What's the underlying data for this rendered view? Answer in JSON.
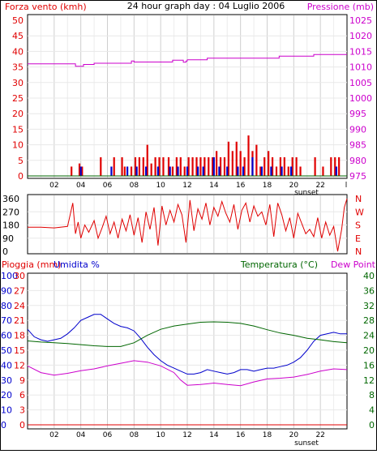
{
  "title": "24 hour graph day : 04 Luglio 2006",
  "colors": {
    "red": "#e00000",
    "magenta": "#cc00cc",
    "blue": "#0000cc",
    "green": "#006600",
    "grid_v": "#cfcfcf",
    "grid_h": "#e8e8e8"
  },
  "chart_data": [
    {
      "type": "bar",
      "ylabel_left": "Forza vento (kmh)",
      "ylabel_right": "Pressione (mb)",
      "yticks_left": [
        "50",
        "45",
        "40",
        "35",
        "30",
        "25",
        "20",
        "15",
        "10",
        "5",
        "0"
      ],
      "yticks_right": [
        "1025",
        "1020",
        "1015",
        "1010",
        "1005",
        "1000",
        "995",
        "990",
        "985",
        "980",
        "975"
      ],
      "ylim_left": [
        0,
        50
      ],
      "ylim_right": [
        975,
        1025
      ],
      "xticks": [
        "02",
        "04",
        "06",
        "08",
        "10",
        "12",
        "14",
        "16",
        "18",
        "20",
        "22"
      ],
      "xticks_extra": [
        "sunset",
        "l"
      ],
      "xlim": [
        0,
        24
      ],
      "grid": true,
      "series": [
        {
          "name": "Pressione (mb)",
          "type": "line",
          "color": "#cc00cc",
          "x": [
            0,
            3.6,
            3.6,
            4.2,
            4.2,
            5.0,
            5.0,
            7.8,
            7.8,
            8.0,
            8.0,
            10.9,
            10.9,
            11.7,
            11.7,
            11.9,
            11.9,
            12.0,
            12.0,
            13.5,
            13.5,
            18.9,
            18.9,
            21.5,
            21.5,
            24.0
          ],
          "y": [
            1011.0,
            1011.0,
            1010.2,
            1010.2,
            1010.8,
            1010.8,
            1011.2,
            1011.2,
            1011.9,
            1011.9,
            1011.6,
            1011.6,
            1012.2,
            1012.2,
            1011.5,
            1011.5,
            1011.9,
            1011.9,
            1012.3,
            1012.3,
            1012.8,
            1012.8,
            1013.5,
            1013.5,
            1014.0,
            1014.0
          ]
        },
        {
          "name": "Forza vento (kmh)",
          "type": "bar",
          "color": "#e00000",
          "x": [
            3.3,
            3.9,
            4.1,
            5.5,
            6.5,
            7.1,
            7.3,
            7.8,
            8.1,
            8.4,
            8.7,
            9.0,
            9.3,
            9.6,
            9.9,
            10.2,
            10.6,
            10.9,
            11.2,
            11.5,
            11.8,
            12.1,
            12.4,
            12.7,
            13.0,
            13.3,
            13.6,
            13.9,
            14.2,
            14.5,
            14.8,
            15.1,
            15.4,
            15.7,
            16.0,
            16.3,
            16.6,
            16.9,
            17.2,
            17.5,
            17.8,
            18.1,
            18.4,
            18.7,
            19.0,
            19.3,
            19.6,
            19.9,
            20.2,
            20.5,
            21.6,
            22.2,
            22.8,
            23.1,
            23.4
          ],
          "y": [
            3,
            4,
            3,
            6,
            6,
            6,
            3,
            3,
            6,
            6,
            6,
            10,
            4,
            6,
            6,
            6,
            6,
            3,
            6,
            6,
            3,
            6,
            6,
            6,
            6,
            6,
            6,
            6,
            8,
            6,
            6,
            11,
            8,
            11,
            8,
            6,
            13,
            8,
            10,
            3,
            6,
            8,
            6,
            3,
            6,
            6,
            3,
            6,
            6,
            3,
            6,
            3,
            6,
            6,
            6
          ]
        },
        {
          "name": "Raffica",
          "type": "bar",
          "color": "#0000cc",
          "x": [
            4.0,
            6.3,
            7.5,
            8.2,
            8.9,
            9.8,
            10.7,
            11.3,
            12.0,
            12.8,
            13.2,
            14.0,
            14.4,
            15.0,
            15.8,
            16.2,
            16.9,
            17.6,
            18.3,
            19.1,
            19.8,
            23.2
          ],
          "y": [
            3,
            3,
            3,
            3,
            3,
            3,
            3,
            3,
            3,
            3,
            3,
            6,
            3,
            3,
            3,
            3,
            6,
            3,
            3,
            3,
            3,
            3
          ]
        }
      ]
    },
    {
      "type": "line",
      "yticks_left": [
        "360",
        "270",
        "180",
        "90",
        "0"
      ],
      "yticks_right": [
        "N",
        "W",
        "S",
        "E",
        "N"
      ],
      "ylim": [
        0,
        360
      ],
      "xlim": [
        0,
        24
      ],
      "series": [
        {
          "name": "Direzione vento",
          "color": "#e00000",
          "x": [
            0,
            1.0,
            2.0,
            3.0,
            3.4,
            3.6,
            3.8,
            4.0,
            4.3,
            4.6,
            5.0,
            5.3,
            5.6,
            5.9,
            6.2,
            6.5,
            6.8,
            7.1,
            7.4,
            7.7,
            8.0,
            8.3,
            8.6,
            8.9,
            9.2,
            9.5,
            9.8,
            10.1,
            10.4,
            10.7,
            11.0,
            11.3,
            11.6,
            11.9,
            12.2,
            12.5,
            12.8,
            13.1,
            13.4,
            13.7,
            14.0,
            14.3,
            14.6,
            14.9,
            15.2,
            15.5,
            15.8,
            16.1,
            16.4,
            16.7,
            17.0,
            17.3,
            17.6,
            17.9,
            18.2,
            18.5,
            18.8,
            19.1,
            19.4,
            19.7,
            20.0,
            20.3,
            20.6,
            20.9,
            21.2,
            21.5,
            21.8,
            22.1,
            22.4,
            22.7,
            23.0,
            23.3,
            23.6,
            23.8,
            24.0
          ],
          "y": [
            165,
            165,
            160,
            170,
            330,
            120,
            200,
            90,
            180,
            130,
            210,
            90,
            160,
            240,
            120,
            200,
            90,
            220,
            140,
            250,
            110,
            230,
            60,
            270,
            150,
            300,
            40,
            310,
            180,
            280,
            200,
            320,
            250,
            60,
            350,
            140,
            290,
            220,
            330,
            180,
            300,
            240,
            340,
            260,
            200,
            320,
            150,
            280,
            330,
            200,
            310,
            240,
            270,
            180,
            320,
            100,
            330,
            250,
            140,
            230,
            90,
            260,
            190,
            120,
            150,
            100,
            230,
            90,
            200,
            110,
            170,
            0,
            150,
            300,
            360
          ]
        }
      ]
    },
    {
      "type": "line",
      "ylabel_rain": "Pioggia (mm)",
      "ylabel_humidity": "Umidita %",
      "ylabel_temp": "Temperatura (°C)",
      "ylabel_dew": "Dew Point",
      "yticks_humidity": [
        "100",
        "90",
        "80",
        "70",
        "60",
        "50",
        "40",
        "30",
        "20",
        "10",
        "0"
      ],
      "yticks_rain": [
        "30",
        "27",
        "24",
        "21",
        "18",
        "15",
        "12",
        "9",
        "6",
        "3",
        "0"
      ],
      "yticks_temp": [
        "40",
        "36",
        "32",
        "28",
        "24",
        "20",
        "16",
        "12",
        "8",
        "4",
        "0"
      ],
      "ylim_humidity": [
        0,
        100
      ],
      "ylim_rain": [
        0,
        30
      ],
      "ylim_temp": [
        0,
        40
      ],
      "xticks": [
        "02",
        "04",
        "06",
        "08",
        "10",
        "12",
        "14",
        "16",
        "18",
        "20",
        "22"
      ],
      "xticks_extra": [
        "sunset"
      ],
      "xlim": [
        0,
        24
      ],
      "grid": true,
      "series": [
        {
          "name": "Umidita %",
          "axis": "humidity",
          "color": "#0000cc",
          "x": [
            0,
            0.5,
            1.0,
            1.5,
            2.0,
            2.5,
            3.0,
            3.5,
            4.0,
            4.5,
            5.0,
            5.5,
            6.0,
            6.5,
            7.0,
            7.5,
            8.0,
            8.5,
            9.0,
            9.5,
            10.0,
            10.5,
            11.0,
            11.5,
            12.0,
            12.5,
            13.0,
            13.5,
            14.0,
            14.5,
            15.0,
            15.5,
            16.0,
            16.5,
            17.0,
            17.5,
            18.0,
            18.5,
            19.0,
            19.5,
            20.0,
            20.5,
            21.0,
            21.5,
            22.0,
            22.5,
            23.0,
            23.5,
            24.0
          ],
          "y": [
            64,
            59,
            57,
            56,
            57,
            58,
            61,
            65,
            70,
            72,
            74,
            74,
            71,
            68,
            66,
            65,
            63,
            58,
            52,
            47,
            43,
            40,
            38,
            36,
            34,
            34,
            35,
            37,
            36,
            35,
            34,
            35,
            37,
            37,
            36,
            37,
            38,
            38,
            39,
            40,
            42,
            45,
            50,
            56,
            60,
            61,
            62,
            61,
            61
          ]
        },
        {
          "name": "Temperatura (°C)",
          "axis": "temp",
          "color": "#006600",
          "x": [
            0,
            1.0,
            2.0,
            3.0,
            4.0,
            5.0,
            6.0,
            7.0,
            8.0,
            9.0,
            10.0,
            11.0,
            12.0,
            13.0,
            14.0,
            15.0,
            16.0,
            17.0,
            18.0,
            19.0,
            20.0,
            21.0,
            22.0,
            23.0,
            24.0
          ],
          "y": [
            22.5,
            22.2,
            22.0,
            21.8,
            21.5,
            21.2,
            21.0,
            21.0,
            22.0,
            24.0,
            25.6,
            26.5,
            27.0,
            27.5,
            27.6,
            27.5,
            27.2,
            26.5,
            25.5,
            24.6,
            24.0,
            23.2,
            22.8,
            22.3,
            22.0
          ]
        },
        {
          "name": "Dew Point",
          "axis": "temp",
          "color": "#cc00cc",
          "x": [
            0,
            1.0,
            2.0,
            3.0,
            4.0,
            5.0,
            6.0,
            7.0,
            8.0,
            9.0,
            10.0,
            11.0,
            11.5,
            12.0,
            13.0,
            14.0,
            15.0,
            16.0,
            17.0,
            18.0,
            19.0,
            20.0,
            21.0,
            22.0,
            23.0,
            24.0
          ],
          "y": [
            15.8,
            14.0,
            13.3,
            13.8,
            14.5,
            15.0,
            15.8,
            16.5,
            17.2,
            16.8,
            15.8,
            14.0,
            12.0,
            10.6,
            10.8,
            11.2,
            10.8,
            10.5,
            11.5,
            12.3,
            12.5,
            12.8,
            13.5,
            14.4,
            15.0,
            14.8
          ]
        },
        {
          "name": "Pioggia (mm)",
          "axis": "rain",
          "color": "#e00000",
          "x": [
            0,
            24
          ],
          "y": [
            0,
            0
          ]
        }
      ]
    }
  ]
}
